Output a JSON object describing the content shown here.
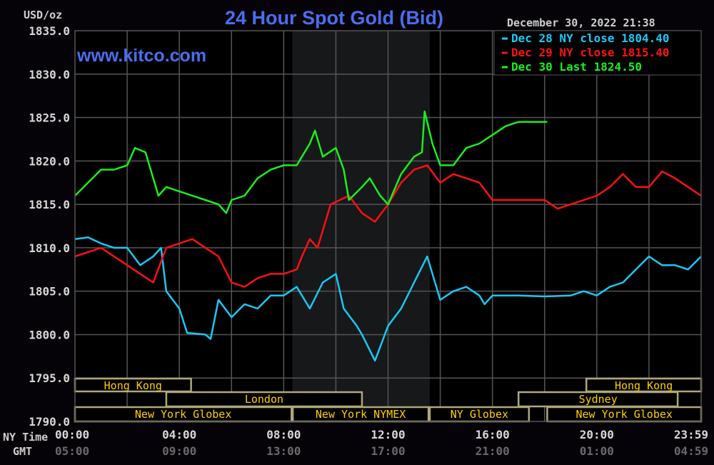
{
  "chart_data": {
    "type": "line",
    "title": "24 Hour Spot Gold (Bid)",
    "watermark": "www.kitco.com",
    "timestamp": "December 30, 2022 21:38",
    "ylabel": "USD/oz",
    "ylim": [
      1790,
      1835
    ],
    "yticks": [
      "1835.0",
      "1830.0",
      "1825.0",
      "1820.0",
      "1815.0",
      "1810.0",
      "1805.0",
      "1800.0",
      "1795.0",
      "1790.0"
    ],
    "xlim_hours": [
      0,
      24
    ],
    "x_row_labels": {
      "ny": "NY Time",
      "gmt": "GMT"
    },
    "xticks_ny": [
      "00:00",
      "04:00",
      "08:00",
      "12:00",
      "16:00",
      "20:00",
      "23:59"
    ],
    "xticks_gmt": [
      "05:00",
      "09:00",
      "13:00",
      "17:00",
      "21:00",
      "01:00",
      "04:59"
    ],
    "grid": true,
    "shaded_hours": [
      8.33,
      13.6
    ],
    "legend_position": "top-right",
    "series": [
      {
        "name": "Dec 28 NY close 1804.40",
        "color": "#19c8f5",
        "x": [
          0,
          0.5,
          1,
          1.5,
          2,
          2.5,
          3,
          3.3,
          3.5,
          4,
          4.3,
          5,
          5.2,
          5.5,
          6,
          6.5,
          7,
          7.5,
          8,
          8.5,
          9,
          9.5,
          10,
          10.3,
          10.8,
          11,
          11.5,
          12,
          12.5,
          13,
          13.5,
          14,
          14.5,
          15,
          15.5,
          15.7,
          16,
          17,
          18,
          19,
          19.5,
          20,
          20.5,
          21,
          21.5,
          22,
          22.5,
          23,
          23.5,
          24
        ],
        "y": [
          1811,
          1811.2,
          1810.5,
          1810,
          1810,
          1808,
          1809,
          1810,
          1805,
          1803,
          1800.2,
          1800,
          1799.5,
          1804,
          1802,
          1803.5,
          1803,
          1804.5,
          1804.5,
          1805.5,
          1803,
          1806,
          1807,
          1803,
          1801,
          1800,
          1797,
          1801,
          1803,
          1806,
          1809,
          1804,
          1805,
          1805.5,
          1804.5,
          1803.5,
          1804.5,
          1804.5,
          1804.4,
          1804.5,
          1805,
          1804.5,
          1805.5,
          1806,
          1807.5,
          1809,
          1808,
          1808,
          1807.5,
          1809
        ]
      },
      {
        "name": "Dec 29 NY close 1815.40",
        "color": "#ff1010",
        "x": [
          0,
          0.5,
          1,
          1.5,
          2,
          2.5,
          3,
          3.5,
          4,
          4.5,
          5,
          5.5,
          6,
          6.5,
          7,
          7.5,
          8,
          8.5,
          8.7,
          9,
          9.3,
          9.5,
          9.8,
          10.5,
          11,
          11.5,
          12,
          12.5,
          13,
          13.5,
          14,
          14.5,
          15,
          15.5,
          16,
          17,
          18,
          18.5,
          19,
          19.5,
          20,
          20.5,
          21,
          21.5,
          22,
          22.5,
          23,
          23.5,
          24
        ],
        "y": [
          1809,
          1809.5,
          1810,
          1809,
          1808,
          1807,
          1806,
          1810,
          1810.5,
          1811,
          1810,
          1809,
          1806,
          1805.5,
          1806.5,
          1807,
          1807,
          1807.5,
          1809,
          1811,
          1810,
          1812,
          1815,
          1816,
          1814,
          1813,
          1815,
          1817.5,
          1819,
          1819.5,
          1817.5,
          1818.5,
          1818,
          1817.5,
          1815.5,
          1815.5,
          1815.5,
          1814.5,
          1815,
          1815.5,
          1816,
          1817,
          1818.5,
          1817,
          1817,
          1818.8,
          1818,
          1817,
          1816
        ]
      },
      {
        "name": "Dec 30 Last 1824.50",
        "color": "#19f019",
        "x": [
          0,
          0.5,
          1,
          1.5,
          2,
          2.3,
          2.7,
          3,
          3.2,
          3.5,
          4,
          4.5,
          5,
          5.5,
          5.8,
          6,
          6.5,
          7,
          7.5,
          8,
          8.5,
          9,
          9.2,
          9.5,
          10,
          10.3,
          10.5,
          11,
          11.3,
          11.7,
          12,
          12.5,
          13,
          13.3,
          13.4,
          13.7,
          14,
          14.5,
          15,
          15.5,
          16,
          16.5,
          17,
          18.1
        ],
        "y": [
          1816,
          1817.5,
          1819,
          1819,
          1819.5,
          1821.5,
          1821,
          1818,
          1816,
          1817,
          1816.5,
          1816,
          1815.5,
          1815,
          1814,
          1815.5,
          1816,
          1818,
          1819,
          1819.5,
          1819.5,
          1822,
          1823.5,
          1820.5,
          1821.5,
          1819,
          1815.5,
          1817,
          1818,
          1816,
          1815,
          1818.5,
          1820.5,
          1821,
          1825.7,
          1822,
          1819.5,
          1819.5,
          1821.5,
          1822,
          1823,
          1824,
          1824.5,
          1824.5
        ]
      }
    ],
    "sessions": [
      {
        "label": "Hong Kong",
        "row": 0,
        "start": 0,
        "end": 4.45
      },
      {
        "label": "Hong Kong",
        "row": 0,
        "start": 19.6,
        "end": 24
      },
      {
        "label": "London",
        "row": 1,
        "start": 3.5,
        "end": 11
      },
      {
        "label": "Sydney",
        "row": 1,
        "start": 17,
        "end": 23.1
      },
      {
        "label": "New York Globex",
        "row": 2,
        "start": 0,
        "end": 8.3
      },
      {
        "label": "New York NYMEX",
        "row": 2,
        "start": 8.35,
        "end": 13.55
      },
      {
        "label": "NY Globex",
        "row": 2,
        "start": 13.6,
        "end": 17.4
      },
      {
        "label": "New York Globex",
        "row": 2,
        "start": 18.1,
        "end": 24
      }
    ]
  }
}
